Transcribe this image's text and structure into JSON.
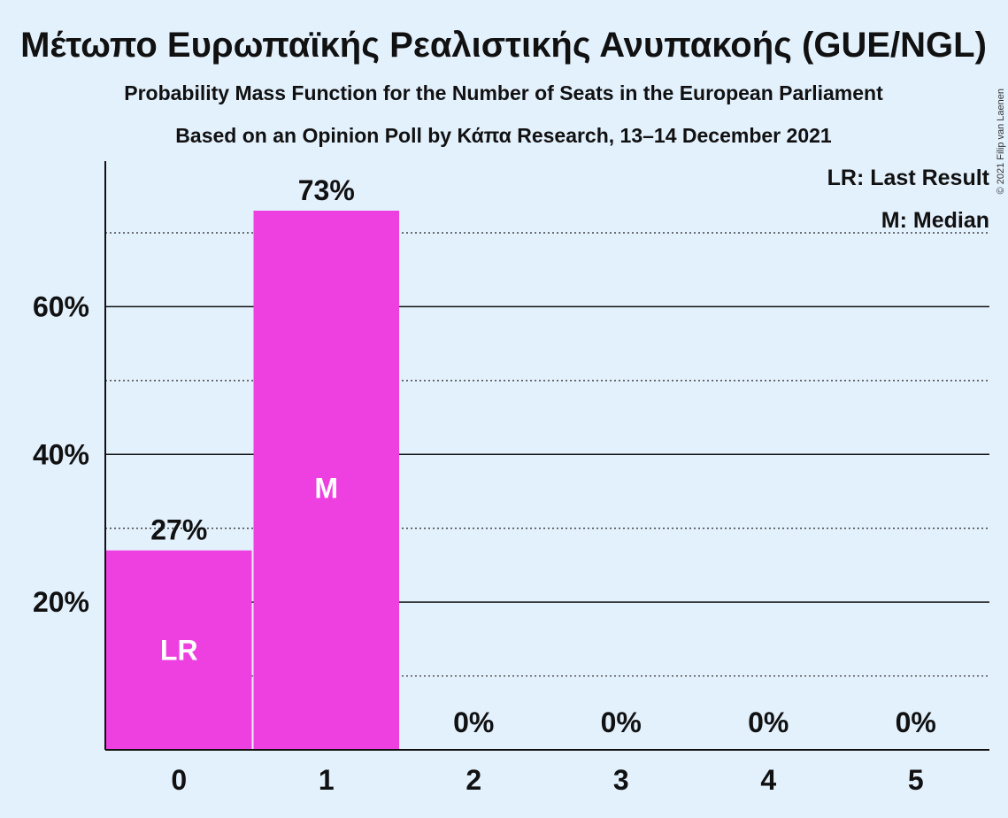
{
  "chart_data": {
    "type": "bar",
    "title": "Μέτωπο Ευρωπαϊκής Ρεαλιστικής Ανυπακοής (GUE/NGL)",
    "subtitle": "Probability Mass Function for the Number of Seats in the European Parliament",
    "subtitle2": "Based on an Opinion Poll by Κάπα Research, 13–14 December 2021",
    "categories": [
      "0",
      "1",
      "2",
      "3",
      "4",
      "5"
    ],
    "values": [
      27,
      73,
      0,
      0,
      0,
      0
    ],
    "value_labels": [
      "27%",
      "73%",
      "0%",
      "0%",
      "0%",
      "0%"
    ],
    "bar_markers": [
      "LR",
      "M",
      "",
      "",
      "",
      ""
    ],
    "ylim": [
      0,
      80
    ],
    "yticks": [
      20,
      40,
      60
    ],
    "ytick_labels": [
      "20%",
      "40%",
      "60%"
    ],
    "minor_gridlines": [
      10,
      30,
      50,
      70
    ],
    "legend": [
      "LR: Last Result",
      "M: Median"
    ],
    "legend_position": "top-right",
    "bar_color": "#ee40e0",
    "copyright": "© 2021 Filip van Laenen"
  }
}
